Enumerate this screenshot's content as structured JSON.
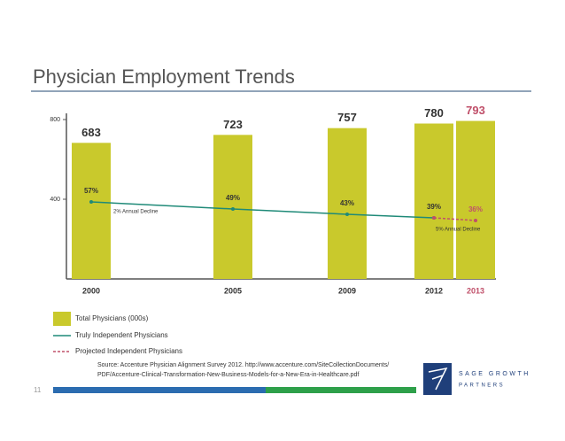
{
  "title": "Physician Employment Trends",
  "page_number": "11",
  "source": [
    "Source: Accenture Physician Alignment Survey 2012. http://www.accenture.com/SiteCollectionDocuments/",
    "PDF/Accenture-Clinical-Transformation-New-Business-Models-for-a-New-Era-in-Healthcare.pdf"
  ],
  "logo": {
    "name": "SAGE GROWTH",
    "sub": "PARTNERS"
  },
  "chart_data": {
    "type": "bar",
    "categories": [
      "2000",
      "2005",
      "2009",
      "2012",
      "2013"
    ],
    "label_colors": [
      "#333333",
      "#333333",
      "#333333",
      "#333333",
      "#c0506a"
    ],
    "series": [
      {
        "name": "Total Physicians (000s)",
        "type": "bar",
        "color": "#c9c92c",
        "values": [
          683,
          723,
          757,
          780,
          793
        ]
      },
      {
        "name": "Truly Independent Physicians",
        "type": "line",
        "axis": "y2",
        "color": "#1f8a78",
        "dashed": false,
        "values": [
          57,
          49,
          43,
          39,
          null
        ],
        "value_labels": [
          "57%",
          "49%",
          "43%",
          "39%",
          null
        ]
      },
      {
        "name": "Projected Independent Physicians",
        "type": "line",
        "axis": "y2",
        "color": "#c0506a",
        "dashed": true,
        "values": [
          null,
          null,
          null,
          39,
          36
        ],
        "value_labels": [
          null,
          null,
          null,
          null,
          "36%"
        ]
      }
    ],
    "ylim": [
      0,
      800
    ],
    "yticks": [
      400,
      800
    ],
    "y2lim": [
      -30,
      150
    ],
    "annotations": [
      "2% Annual Decline",
      "5% Annual Decline"
    ]
  }
}
